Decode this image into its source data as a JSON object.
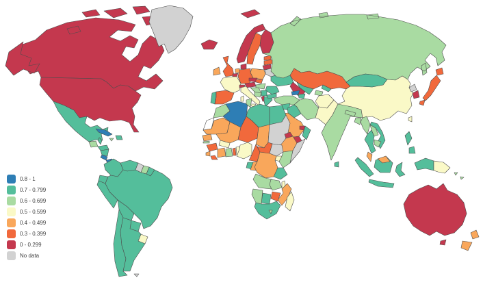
{
  "map": {
    "background_color": "#ffffff",
    "stroke_color": "#4d4d4d",
    "no_fill_color": "#ffffff",
    "legend": {
      "items": [
        {
          "key": "b08",
          "label": "0.8 - 1",
          "color": "#2E7EB5"
        },
        {
          "key": "b07",
          "label": "0.7 - 0.799",
          "color": "#54BE9B"
        },
        {
          "key": "b06",
          "label": "0.6 - 0.699",
          "color": "#A9DBA2"
        },
        {
          "key": "b05",
          "label": "0.5 - 0.599",
          "color": "#FAF9C7"
        },
        {
          "key": "b04",
          "label": "0.4 - 0.499",
          "color": "#F9A75B"
        },
        {
          "key": "b03",
          "label": "0.3 - 0.399",
          "color": "#F1693C"
        },
        {
          "key": "b0",
          "label": "0 - 0.299",
          "color": "#C4384E"
        },
        {
          "key": "nodata",
          "label": "No data",
          "color": "#D2D2D2"
        }
      ]
    },
    "countries": {
      "canada": "b0",
      "usa": "b0",
      "alaska": "b0",
      "greenland": "nodata",
      "mexico": "b07",
      "guatemala": "b06",
      "belize": "b07",
      "honduras": "b07",
      "nicaragua": "b07",
      "costa-rica": "b08",
      "panama": "b08",
      "cuba": "b08",
      "jamaica": "b06",
      "hispaniola": "b07",
      "colombia": "b07",
      "venezuela": "b07",
      "guyana": "nodata",
      "suriname": "b06",
      "french-guiana": "b07",
      "ecuador": "b07",
      "peru": "b07",
      "brazil": "b07",
      "bolivia": "b07",
      "paraguay": "b07",
      "uruguay": "b05",
      "chile": "b07",
      "argentina": "b07",
      "falkland-islands": "nodata",
      "iceland": "b0",
      "svalbard": "b0",
      "ireland": "b04",
      "uk": "b03",
      "portugal": "b07",
      "spain": "b03",
      "france": "b05",
      "netherlands": "b04",
      "belgium": "b0",
      "germany": "b03",
      "denmark": "b0",
      "switzerland": "b0",
      "czechia": "b0",
      "austria": "b0",
      "slovakia": "b03",
      "poland": "b04",
      "norway": "b0",
      "sweden": "b03",
      "finland": "b0",
      "estonia": "b03",
      "latvia": "b03",
      "lithuania": "b0",
      "belarus": "nodata",
      "ukraine": "b07",
      "romania": "b07",
      "hungary": "b06",
      "croatia": "b06",
      "bosnia": "b06",
      "serbia": "b07",
      "albania": "b0",
      "greece": "b07",
      "bulgaria": "b07",
      "italy": "b05",
      "sicily": "b05",
      "sardinia": "b05",
      "russia": "b06",
      "kazakhstan": "b03",
      "turkmenistan": "b0",
      "uzbekistan": "b07",
      "kyrgyzstan": "b07",
      "tajikistan": "b06",
      "georgia": "b08",
      "azerbaijan": "b07",
      "turkey": "b06",
      "syria": "b07",
      "iraq": "b07",
      "iran": "b06",
      "jordan": "b06",
      "israel": "b08",
      "saudi-arabia": "b04",
      "yemen": "b0",
      "oman": "b07",
      "uae": "b0",
      "afghanistan": "b05",
      "pakistan": "b05",
      "india": "b06",
      "nepal": "b06",
      "bangladesh": "b06",
      "sri-lanka": "b07",
      "china": "b05",
      "mongolia": "b07",
      "north-korea": "nodata",
      "south-korea": "b0",
      "japan": "b03",
      "hokkaido": "b03",
      "kyushu": "b03",
      "taiwan": "b05",
      "myanmar": "b06",
      "laos": "b06",
      "thailand": "b07",
      "vietnam": "b07",
      "cambodia": "b06",
      "malaysia-peninsula": "b04",
      "malaysia-borneo": "b04",
      "sumatra": "b07",
      "java": "b07",
      "borneo": "b07",
      "sulawesi": "b07",
      "west-papua": "b07",
      "papua-new-guinea": "b05",
      "philippines-luzon": "b07",
      "philippines-mindanao": "b07",
      "solomon-1": "b06",
      "solomon-2": "b06",
      "morocco": "b06",
      "western-sahara": "none",
      "algeria": "b08",
      "tunisia": "b06",
      "libya": "b07",
      "egypt": "b07",
      "mauritania": "b04",
      "mali": "b04",
      "niger": "b03",
      "chad": "b04",
      "sudan": "nodata",
      "south-sudan": "nodata",
      "eritrea": "b0",
      "ethiopia": "b04",
      "somalia": "nodata",
      "senegal": "b04",
      "gambia": "b06",
      "guinea": "b03",
      "sierra-leone": "b04",
      "liberia": "b03",
      "ivory-coast": "b04",
      "ghana": "b06",
      "togo": "b03",
      "benin": "b05",
      "burkina-faso": "b05",
      "nigeria": "b05",
      "cameroon": "b03",
      "central-african-republic": "b03",
      "gabon": "b07",
      "congo": "b04",
      "dr-congo": "b04",
      "uganda": "b05",
      "kenya": "b06",
      "tanzania": "b07",
      "angola": "b06",
      "zambia": "b06",
      "malawi": "b05",
      "mozambique": "b04",
      "zimbabwe": "b03",
      "botswana": "b07",
      "namibia": "b06",
      "south-africa": "b07",
      "lesotho": "b06",
      "madagascar": "b05",
      "australia": "b0",
      "tasmania": "b0",
      "nz-north": "b04",
      "nz-south": "b04"
    }
  }
}
